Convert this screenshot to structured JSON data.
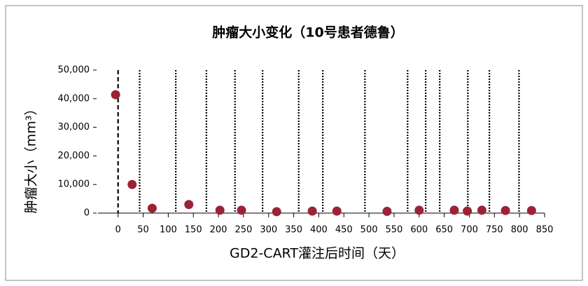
{
  "chart_data": {
    "type": "scatter",
    "title": "肿瘤大小变化（10号患者德鲁）",
    "x_label": "GD2-CART灌注后时间（天）",
    "y_label": "肿瘤大小（mm³）",
    "x": [
      -5,
      28,
      68,
      141,
      203,
      246,
      316,
      387,
      436,
      536,
      600,
      670,
      696,
      725,
      772,
      824
    ],
    "values": [
      41400,
      10000,
      1700,
      3000,
      1000,
      1000,
      500,
      700,
      700,
      600,
      1000,
      1000,
      700,
      1000,
      900,
      900
    ],
    "color": "#9b2335",
    "xlim": [
      -40,
      850
    ],
    "xticks": [
      0,
      50,
      100,
      150,
      200,
      250,
      300,
      350,
      400,
      450,
      500,
      550,
      600,
      650,
      700,
      750,
      800,
      850
    ],
    "ylim": [
      0,
      50000
    ],
    "yticks": [
      0,
      {
        "value": 10000,
        "label": "10,000"
      },
      {
        "value": 20000,
        "label": "20,000"
      },
      {
        "value": 30000,
        "label": "30,000"
      },
      {
        "value": 40000,
        "label": "40,000"
      },
      {
        "value": 50000,
        "label": "50,000"
      }
    ],
    "dashed_lines": [
      0
    ],
    "dotted_lines": [
      43,
      115,
      176,
      233,
      288,
      360,
      408,
      492,
      577,
      613,
      641,
      697,
      740,
      799
    ],
    "grid": false
  }
}
